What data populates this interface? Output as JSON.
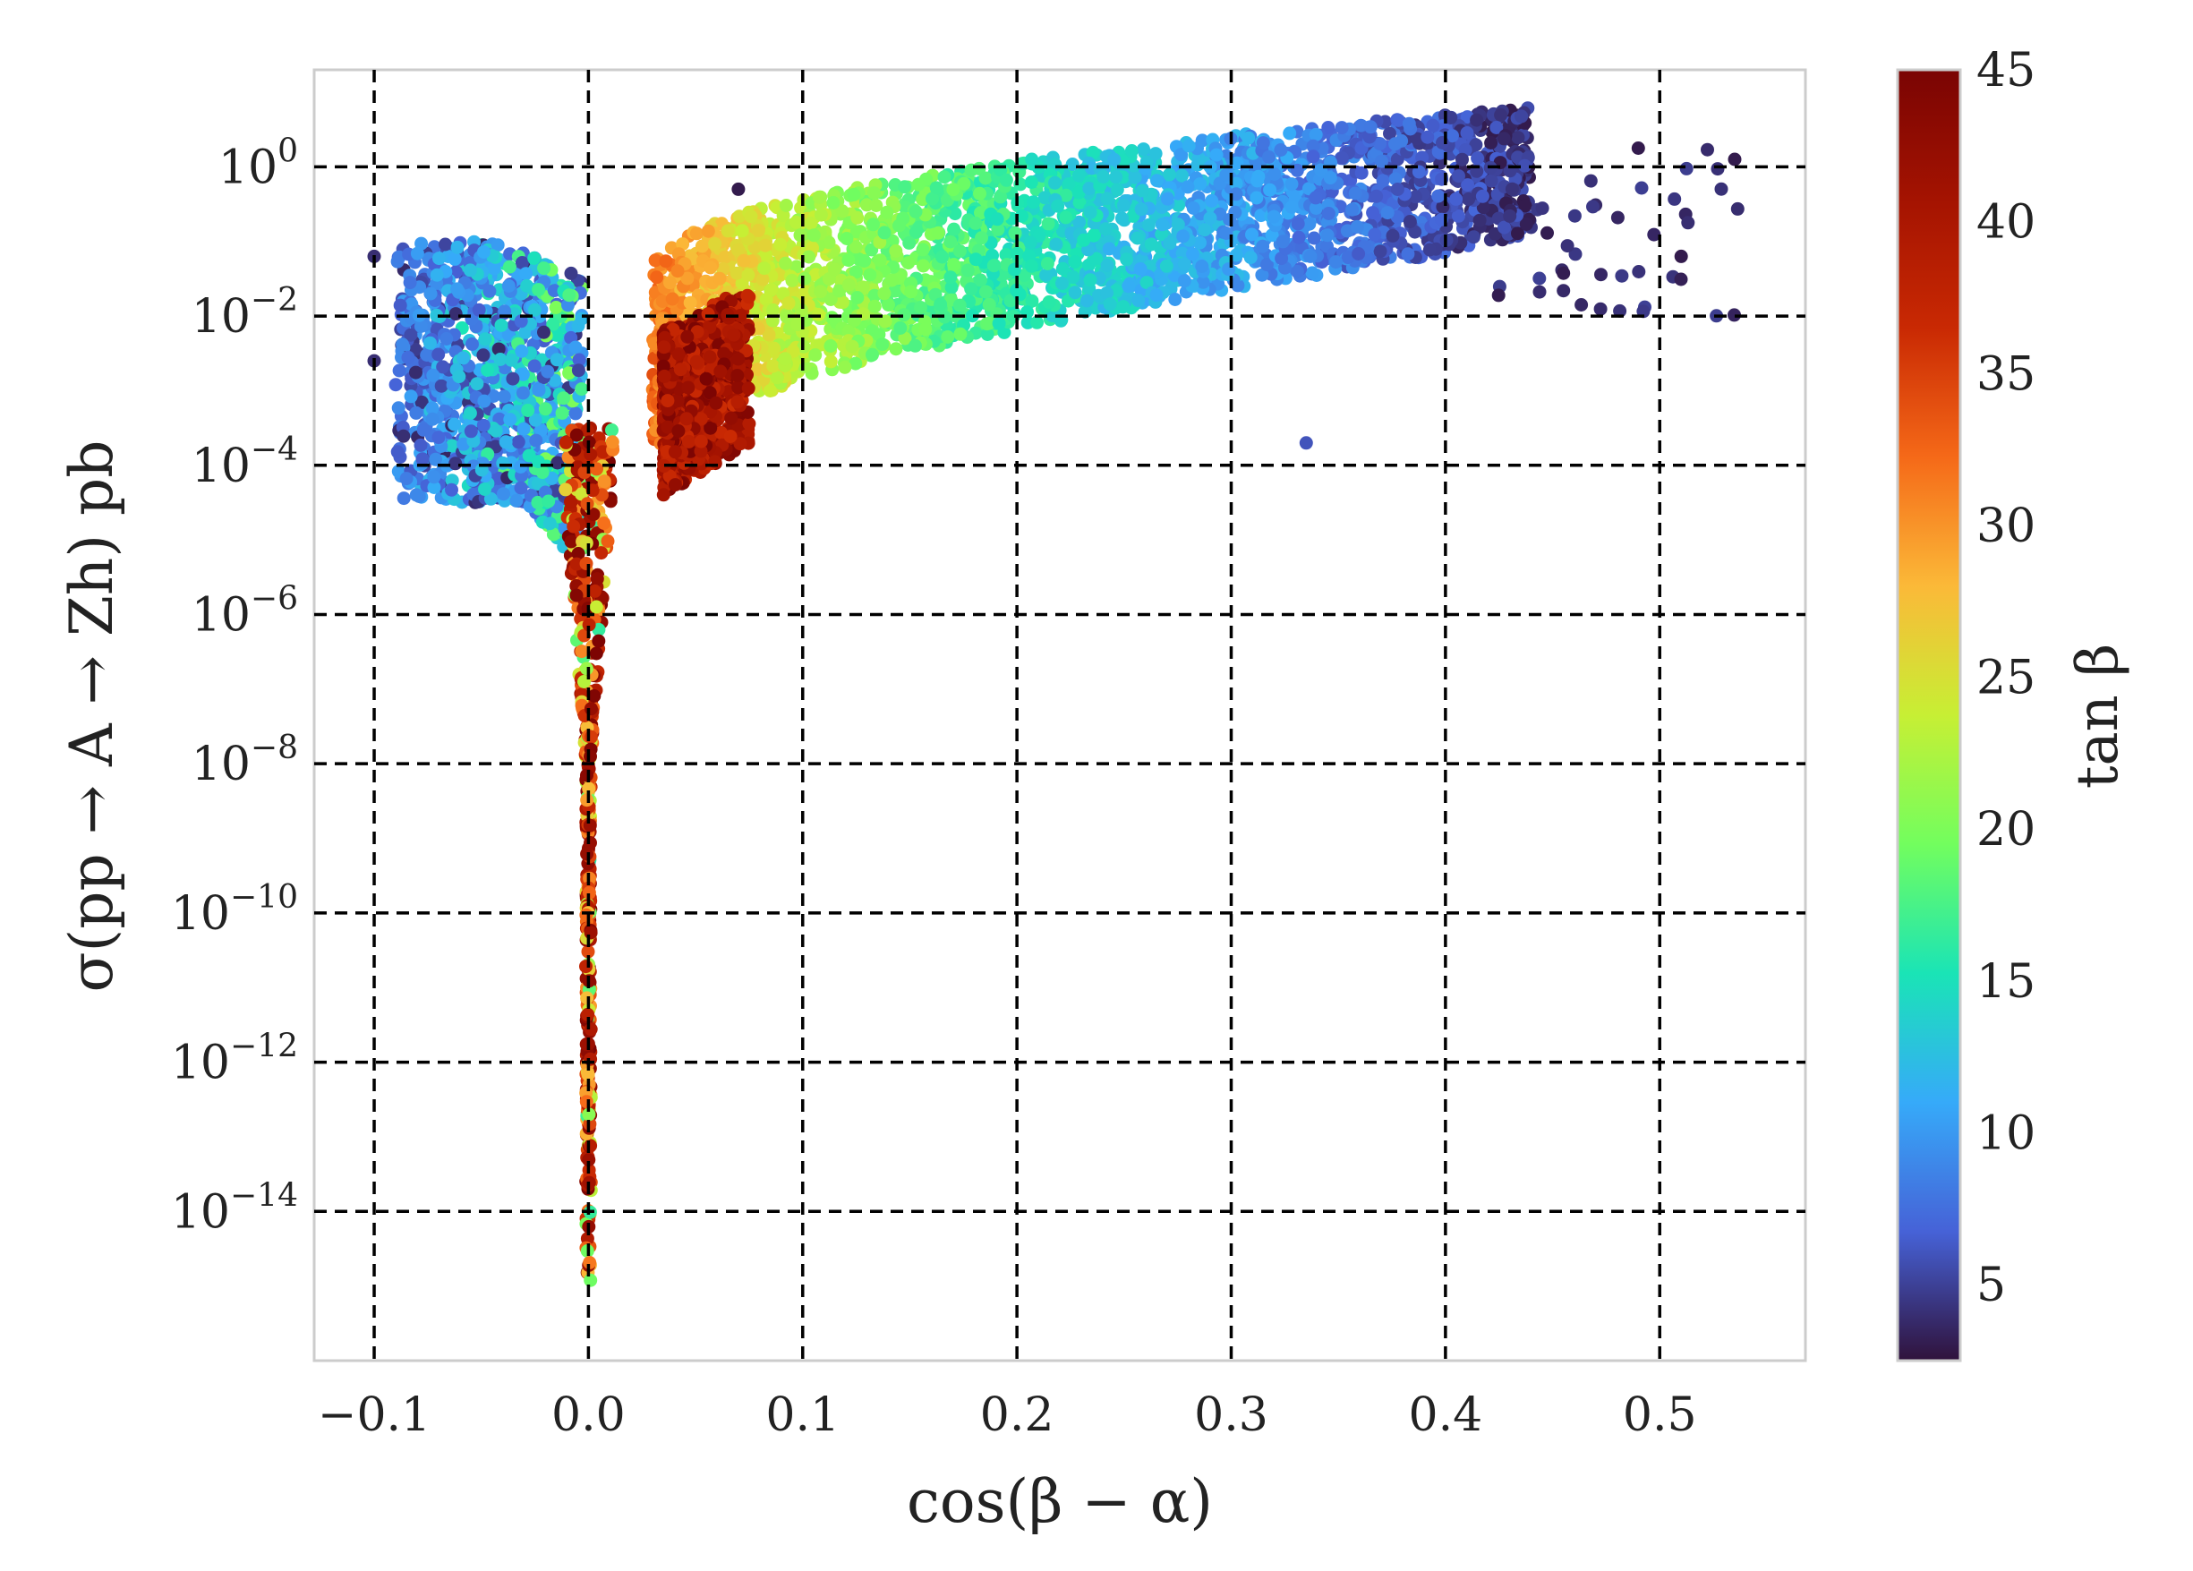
{
  "chart_data": {
    "type": "scatter",
    "xlabel": "cos(β − α)",
    "ylabel": "σ(pp → A → Zh) pb",
    "xlim": [
      -0.128,
      0.568
    ],
    "ylim_log10": [
      -16.0,
      1.3
    ],
    "y_scale": "log",
    "grid": true,
    "x_ticks": [
      {
        "value": -0.1,
        "label": "−0.1"
      },
      {
        "value": 0.0,
        "label": "0.0"
      },
      {
        "value": 0.1,
        "label": "0.1"
      },
      {
        "value": 0.2,
        "label": "0.2"
      },
      {
        "value": 0.3,
        "label": "0.3"
      },
      {
        "value": 0.4,
        "label": "0.4"
      },
      {
        "value": 0.5,
        "label": "0.5"
      }
    ],
    "y_ticks": [
      {
        "value": 0,
        "base": "10",
        "exp": "0"
      },
      {
        "value": -2,
        "base": "10",
        "exp": "−2"
      },
      {
        "value": -4,
        "base": "10",
        "exp": "−4"
      },
      {
        "value": -6,
        "base": "10",
        "exp": "−6"
      },
      {
        "value": -8,
        "base": "10",
        "exp": "−8"
      },
      {
        "value": -10,
        "base": "10",
        "exp": "−10"
      },
      {
        "value": -12,
        "base": "10",
        "exp": "−12"
      },
      {
        "value": -14,
        "base": "10",
        "exp": "−14"
      }
    ],
    "colorbar": {
      "label": "tan β",
      "min": 2.5,
      "max": 45,
      "colormap": "turbo",
      "ticks": [
        {
          "value": 5,
          "label": "5"
        },
        {
          "value": 10,
          "label": "10"
        },
        {
          "value": 15,
          "label": "15"
        },
        {
          "value": 20,
          "label": "20"
        },
        {
          "value": 25,
          "label": "25"
        },
        {
          "value": 30,
          "label": "30"
        },
        {
          "value": 35,
          "label": "35"
        },
        {
          "value": 40,
          "label": "40"
        },
        {
          "value": 45,
          "label": "45"
        }
      ]
    },
    "point_groups": [
      {
        "name": "left lobe",
        "count": 1100,
        "x_range": [
          -0.09,
          -0.003
        ],
        "y_log10_range": [
          -4.8,
          -1.0
        ],
        "c_range": [
          3,
          20
        ]
      },
      {
        "name": "central spike",
        "count": 500,
        "x_range": [
          -0.003,
          0.003
        ],
        "y_log10_range": [
          -15.5,
          -3.5
        ],
        "c_range": [
          15,
          45
        ]
      },
      {
        "name": "right band high tan beta",
        "count": 700,
        "x_range": [
          0.035,
          0.075
        ],
        "y_log10_range": [
          -4.5,
          -2.2
        ],
        "c_range": [
          36,
          45
        ]
      },
      {
        "name": "right band",
        "count": 2800,
        "x_range": [
          0.03,
          0.44
        ],
        "y_log10_range": [
          -4.0,
          0.6
        ],
        "c_range": [
          3,
          33
        ]
      },
      {
        "name": "sparse tail",
        "count": 40,
        "x_range": [
          0.42,
          0.54
        ],
        "y_log10_range": [
          -2.0,
          0.3
        ],
        "c_range": [
          3,
          5
        ]
      }
    ],
    "outliers": [
      {
        "x": -0.1,
        "y_log10": -1.2,
        "c": 4
      },
      {
        "x": -0.1,
        "y_log10": -2.6,
        "c": 4
      },
      {
        "x": 0.07,
        "y_log10": -0.3,
        "c": 3
      },
      {
        "x": 0.335,
        "y_log10": -3.7,
        "c": 6
      },
      {
        "x": 0.535,
        "y_log10": 0.1,
        "c": 3
      },
      {
        "x": 0.51,
        "y_log10": -1.2,
        "c": 3
      },
      {
        "x": 0.49,
        "y_log10": 0.25,
        "c": 3
      }
    ]
  }
}
